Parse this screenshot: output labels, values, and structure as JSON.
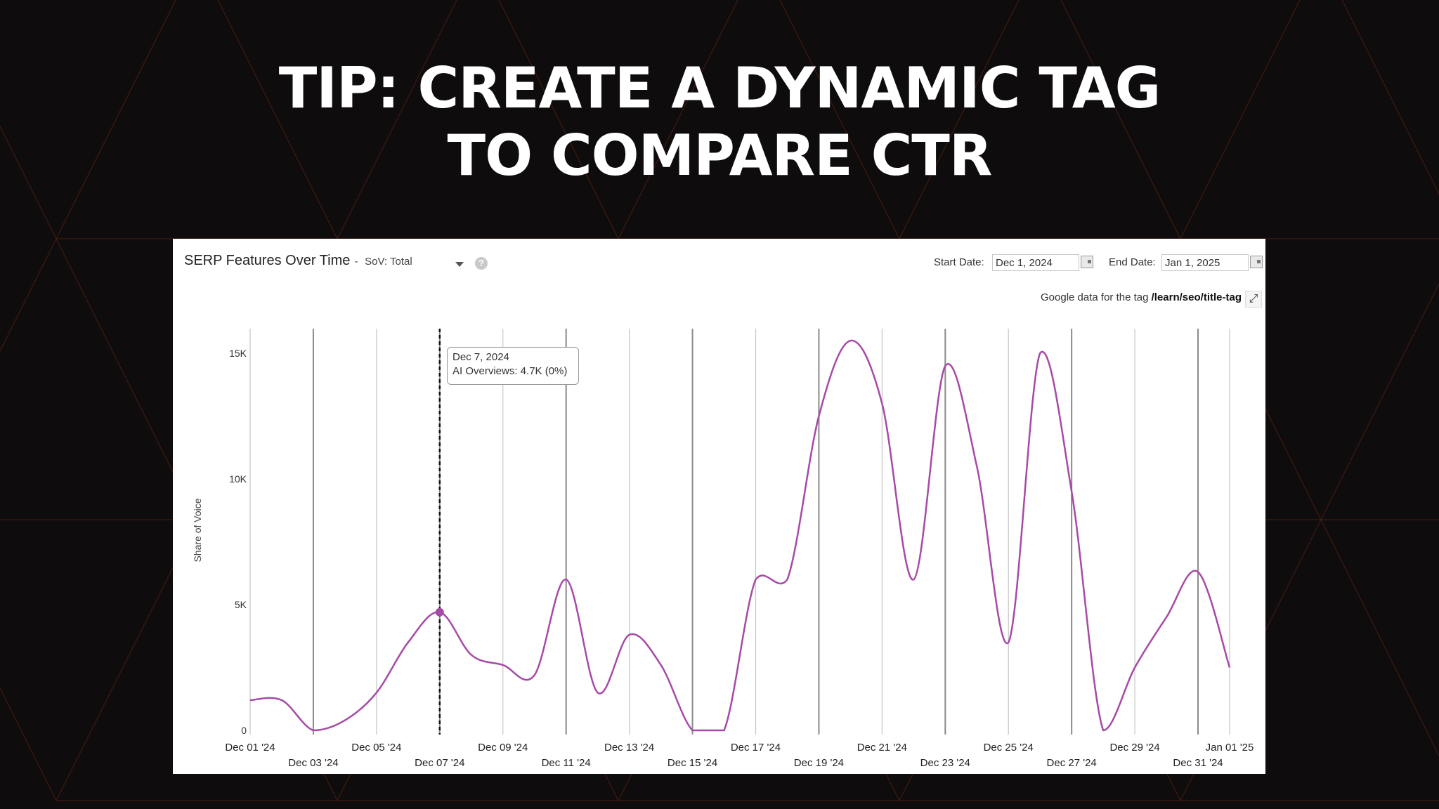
{
  "slide": {
    "title_line1": "TIP: CREATE A DYNAMIC TAG",
    "title_line2": "TO COMPARE CTR"
  },
  "panel": {
    "title": "SERP Features Over Time",
    "title_dash": " -",
    "sov_label": "SoV: Total",
    "help_glyph": "?",
    "start_date_label": "Start Date:",
    "start_date_value": "Dec 1, 2024",
    "end_date_label": "End Date:",
    "end_date_value": "Jan 1, 2025",
    "tag_note_prefix": "Google data for the tag",
    "tag_path": "/learn/seo/title-tag",
    "expand_glyph": "⤢"
  },
  "tooltip": {
    "date": "Dec 7, 2024",
    "text": "AI Overviews: 4.7K (0%)"
  },
  "colors": {
    "background": "#0e0c0c",
    "background_lines": "#7a2a18",
    "series": "#a64aa8",
    "gridline": "#c6c6c6"
  },
  "chart_data": {
    "type": "line",
    "title": "SERP Features Over Time",
    "ylabel": "Share of Voice",
    "xlabel": "",
    "ylim": [
      0,
      16000
    ],
    "y_ticks": [
      {
        "value": 0,
        "label": "0"
      },
      {
        "value": 5000,
        "label": "5K"
      },
      {
        "value": 10000,
        "label": "10K"
      },
      {
        "value": 15000,
        "label": "15K"
      }
    ],
    "x_ticks": [
      {
        "day": 1,
        "label": "Dec 01 '24"
      },
      {
        "day": 3,
        "label": "Dec 03 '24"
      },
      {
        "day": 5,
        "label": "Dec 05 '24"
      },
      {
        "day": 7,
        "label": "Dec 07 '24"
      },
      {
        "day": 9,
        "label": "Dec 09 '24"
      },
      {
        "day": 11,
        "label": "Dec 11 '24"
      },
      {
        "day": 13,
        "label": "Dec 13 '24"
      },
      {
        "day": 15,
        "label": "Dec 15 '24"
      },
      {
        "day": 17,
        "label": "Dec 17 '24"
      },
      {
        "day": 19,
        "label": "Dec 19 '24"
      },
      {
        "day": 21,
        "label": "Dec 21 '24"
      },
      {
        "day": 23,
        "label": "Dec 23 '24"
      },
      {
        "day": 25,
        "label": "Dec 25 '24"
      },
      {
        "day": 27,
        "label": "Dec 27 '24"
      },
      {
        "day": 29,
        "label": "Dec 29 '24"
      },
      {
        "day": 31,
        "label": "Dec 31 '24"
      },
      {
        "day": 32,
        "label": "Jan 01 '25"
      }
    ],
    "grid": true,
    "highlight_day": 7,
    "series": [
      {
        "name": "AI Overviews",
        "points": [
          [
            1.0,
            1200
          ],
          [
            2.0,
            1200
          ],
          [
            3.0,
            0
          ],
          [
            4.0,
            400
          ],
          [
            5.0,
            1500
          ],
          [
            6.0,
            3500
          ],
          [
            7.0,
            4700
          ],
          [
            8.0,
            3000
          ],
          [
            9.0,
            2600
          ],
          [
            10.0,
            2200
          ],
          [
            11.0,
            6000
          ],
          [
            12.0,
            1500
          ],
          [
            13.0,
            3800
          ],
          [
            14.0,
            2600
          ],
          [
            15.0,
            0
          ],
          [
            16.0,
            0
          ],
          [
            17.0,
            6000
          ],
          [
            18.0,
            6000
          ],
          [
            19.0,
            12500
          ],
          [
            20.0,
            15500
          ],
          [
            21.0,
            13000
          ],
          [
            22.0,
            6000
          ],
          [
            23.0,
            14500
          ],
          [
            24.0,
            10500
          ],
          [
            25.0,
            3500
          ],
          [
            26.0,
            15000
          ],
          [
            27.0,
            9500
          ],
          [
            28.0,
            0
          ],
          [
            29.0,
            2500
          ],
          [
            30.0,
            4500
          ],
          [
            31.0,
            6300
          ],
          [
            32.0,
            2500
          ]
        ]
      }
    ]
  }
}
